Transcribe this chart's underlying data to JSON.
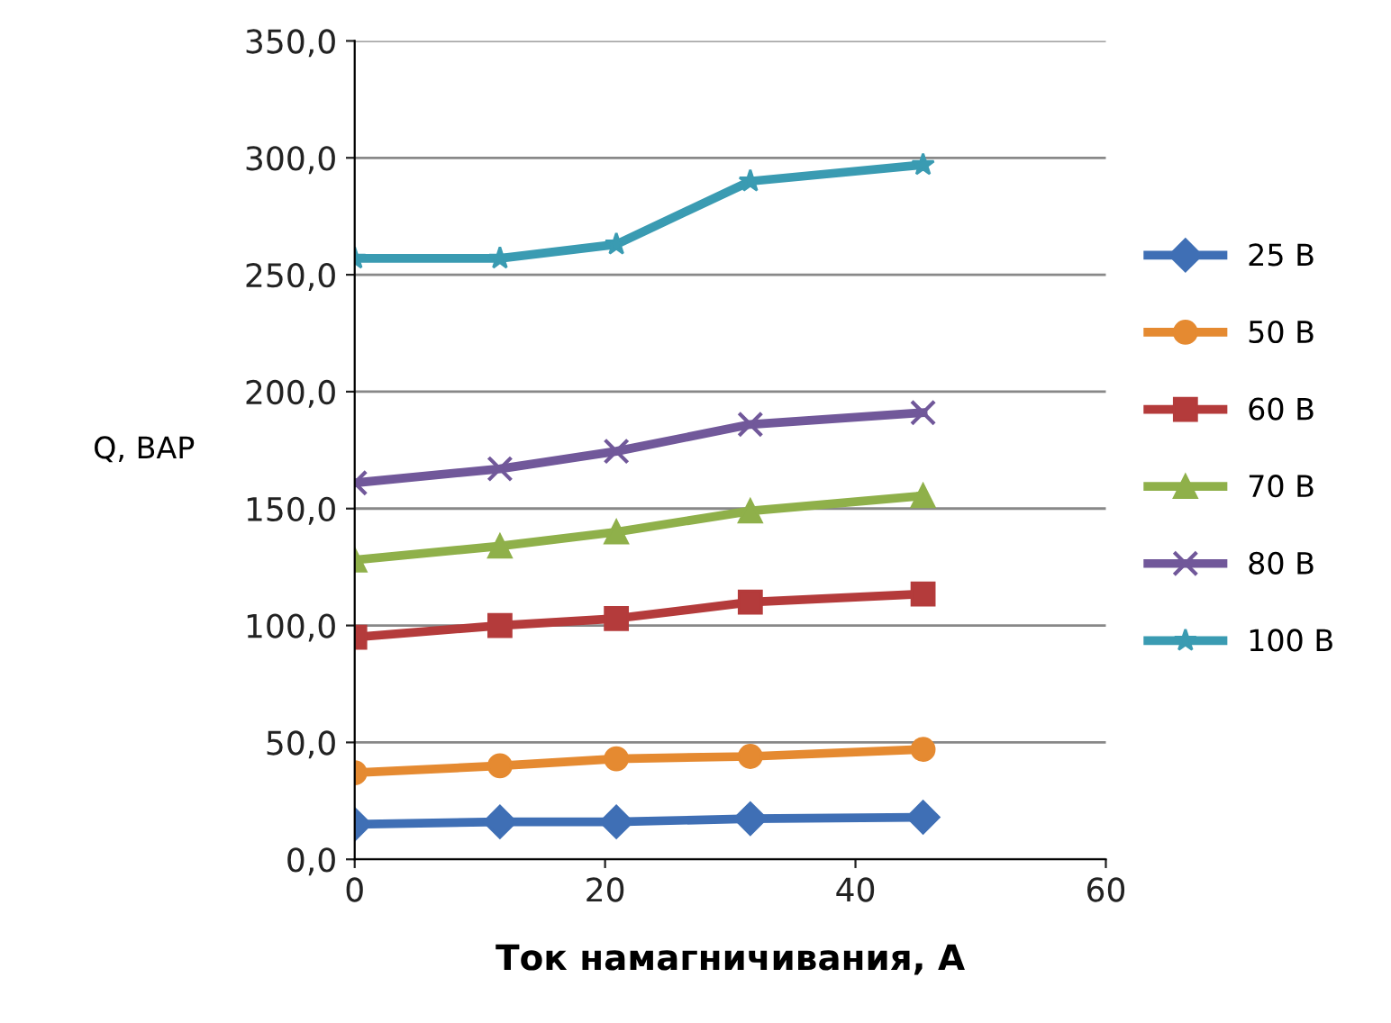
{
  "chart_data": {
    "type": "line",
    "xlabel": "Ток намагничивания, А",
    "ylabel": "Q, ВАР",
    "x": [
      0,
      11.6,
      20.9,
      31.6,
      45.4
    ],
    "series": [
      {
        "name": "25 В",
        "color": "#3f6fb5",
        "marker": "diamond",
        "values": [
          15,
          16,
          16,
          17.4,
          18
        ]
      },
      {
        "name": "50 В",
        "color": "#e58a31",
        "marker": "circle",
        "values": [
          37,
          40,
          43,
          44,
          47
        ]
      },
      {
        "name": "60 В",
        "color": "#b43b3b",
        "marker": "square",
        "values": [
          95,
          100,
          103,
          110,
          113.5
        ]
      },
      {
        "name": "70 В",
        "color": "#8fb04a",
        "marker": "triangle",
        "values": [
          128,
          134,
          140,
          149,
          155.5
        ]
      },
      {
        "name": "80 В",
        "color": "#71589a",
        "marker": "cross",
        "values": [
          161,
          167,
          174.5,
          186,
          191
        ]
      },
      {
        "name": "100 В",
        "color": "#3a9bb2",
        "marker": "star",
        "values": [
          257,
          257,
          263,
          290,
          297
        ]
      }
    ],
    "xlim": [
      0,
      60
    ],
    "xticks": [
      0,
      20,
      40,
      60
    ],
    "ylim": [
      0,
      350
    ],
    "yticks": [
      {
        "value": 0,
        "label": "0,0"
      },
      {
        "value": 50,
        "label": "50,0"
      },
      {
        "value": 100,
        "label": "100,0"
      },
      {
        "value": 150,
        "label": "150,0"
      },
      {
        "value": 200,
        "label": "200,0"
      },
      {
        "value": 250,
        "label": "250,0"
      },
      {
        "value": 300,
        "label": "300,0"
      },
      {
        "value": 350,
        "label": "350,0"
      }
    ],
    "grid": "y",
    "legend": "right",
    "line_style": "solid"
  }
}
